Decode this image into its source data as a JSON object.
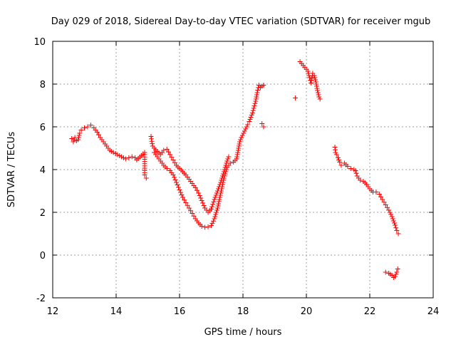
{
  "chart_data": {
    "type": "scatter",
    "title": "Day 029 of 2018, Sidereal Day-to-day VTEC variation (SDTVAR) for receiver mgub",
    "xlabel": "GPS time / hours",
    "ylabel": "SDTVAR / TECUs",
    "xlim": [
      12,
      24
    ],
    "ylim": [
      -2,
      10
    ],
    "xticks": [
      12,
      14,
      16,
      18,
      20,
      22,
      24
    ],
    "yticks": [
      -2,
      0,
      2,
      4,
      6,
      8,
      10
    ],
    "grid": true,
    "marker": "+",
    "series": [
      {
        "name": "SDTVAR",
        "color": "#ff0000",
        "points": [
          [
            12.6,
            5.45
          ],
          [
            12.65,
            5.3
          ],
          [
            12.7,
            5.5
          ],
          [
            12.75,
            5.35
          ],
          [
            12.8,
            5.4
          ],
          [
            12.85,
            5.7
          ],
          [
            12.9,
            5.85
          ],
          [
            13.0,
            5.95
          ],
          [
            13.1,
            6.0
          ],
          [
            13.2,
            6.08
          ],
          [
            13.3,
            5.95
          ],
          [
            13.4,
            5.75
          ],
          [
            13.5,
            5.5
          ],
          [
            13.6,
            5.3
          ],
          [
            13.7,
            5.1
          ],
          [
            13.8,
            4.9
          ],
          [
            13.85,
            4.85
          ],
          [
            14.3,
            4.5
          ],
          [
            14.4,
            4.55
          ],
          [
            14.5,
            4.6
          ],
          [
            14.6,
            4.55
          ],
          [
            14.65,
            4.45
          ],
          [
            14.9,
            4.8
          ],
          [
            14.9,
            3.75
          ],
          [
            14.95,
            3.6
          ],
          [
            15.1,
            5.55
          ],
          [
            15.15,
            5.1
          ],
          [
            15.2,
            5.0
          ],
          [
            15.3,
            4.85
          ],
          [
            15.4,
            4.7
          ],
          [
            15.5,
            4.9
          ],
          [
            15.6,
            4.95
          ],
          [
            15.7,
            4.7
          ],
          [
            15.8,
            4.45
          ],
          [
            15.9,
            4.2
          ],
          [
            16.0,
            4.05
          ],
          [
            16.1,
            3.9
          ],
          [
            16.2,
            3.75
          ],
          [
            16.3,
            3.55
          ],
          [
            16.4,
            3.35
          ],
          [
            16.5,
            3.15
          ],
          [
            16.6,
            2.9
          ],
          [
            16.7,
            2.55
          ],
          [
            16.8,
            2.2
          ],
          [
            16.9,
            2.0
          ],
          [
            17.0,
            2.15
          ],
          [
            17.1,
            2.6
          ],
          [
            17.2,
            3.0
          ],
          [
            17.3,
            3.4
          ],
          [
            17.4,
            3.9
          ],
          [
            17.5,
            4.4
          ],
          [
            17.55,
            4.6
          ],
          [
            15.2,
            4.8
          ],
          [
            15.3,
            4.6
          ],
          [
            15.4,
            4.4
          ],
          [
            15.5,
            4.2
          ],
          [
            15.6,
            4.05
          ],
          [
            15.7,
            3.95
          ],
          [
            15.8,
            3.75
          ],
          [
            15.9,
            3.4
          ],
          [
            16.0,
            3.05
          ],
          [
            16.1,
            2.7
          ],
          [
            16.2,
            2.45
          ],
          [
            16.3,
            2.2
          ],
          [
            16.4,
            1.95
          ],
          [
            16.5,
            1.7
          ],
          [
            16.6,
            1.5
          ],
          [
            16.7,
            1.35
          ],
          [
            16.8,
            1.3
          ],
          [
            16.9,
            1.32
          ],
          [
            17.0,
            1.38
          ],
          [
            17.1,
            1.7
          ],
          [
            17.2,
            2.2
          ],
          [
            17.3,
            2.9
          ],
          [
            17.4,
            3.6
          ],
          [
            17.5,
            4.1
          ],
          [
            17.6,
            4.3
          ],
          [
            17.7,
            4.35
          ],
          [
            17.8,
            4.5
          ],
          [
            17.9,
            5.3
          ],
          [
            17.95,
            5.5
          ],
          [
            18.15,
            6.1
          ],
          [
            18.2,
            6.25
          ],
          [
            18.3,
            6.65
          ],
          [
            18.4,
            7.2
          ],
          [
            18.45,
            7.6
          ],
          [
            18.5,
            7.95
          ],
          [
            18.55,
            7.85
          ],
          [
            18.6,
            7.9
          ],
          [
            18.65,
            7.95
          ],
          [
            18.6,
            6.15
          ],
          [
            18.65,
            6.0
          ],
          [
            19.65,
            7.35
          ],
          [
            19.8,
            9.05
          ],
          [
            20.05,
            8.6
          ],
          [
            20.1,
            8.3
          ],
          [
            20.15,
            8.05
          ],
          [
            20.2,
            8.5
          ],
          [
            20.25,
            8.4
          ],
          [
            20.3,
            8.1
          ],
          [
            20.35,
            7.7
          ],
          [
            20.4,
            7.4
          ],
          [
            20.43,
            7.3
          ],
          [
            20.9,
            5.05
          ],
          [
            20.92,
            4.8
          ],
          [
            20.95,
            4.7
          ],
          [
            21.0,
            4.55
          ],
          [
            21.05,
            4.35
          ],
          [
            21.1,
            4.2
          ],
          [
            21.2,
            4.3
          ],
          [
            21.3,
            4.15
          ],
          [
            21.4,
            4.05
          ],
          [
            21.5,
            4.0
          ],
          [
            21.55,
            3.95
          ],
          [
            21.6,
            3.7
          ],
          [
            21.7,
            3.5
          ],
          [
            21.8,
            3.45
          ],
          [
            21.9,
            3.3
          ],
          [
            22.0,
            3.1
          ],
          [
            22.1,
            2.95
          ],
          [
            22.2,
            2.95
          ],
          [
            22.3,
            2.85
          ],
          [
            22.4,
            2.6
          ],
          [
            22.5,
            2.35
          ],
          [
            22.6,
            2.1
          ],
          [
            22.7,
            1.8
          ],
          [
            22.75,
            1.6
          ],
          [
            22.8,
            1.4
          ],
          [
            22.85,
            1.15
          ],
          [
            22.9,
            1.0
          ],
          [
            22.5,
            -0.8
          ],
          [
            22.6,
            -0.85
          ],
          [
            22.65,
            -0.9
          ],
          [
            22.7,
            -0.95
          ],
          [
            22.75,
            -1.05
          ],
          [
            22.8,
            -1.0
          ],
          [
            22.85,
            -0.8
          ],
          [
            22.88,
            -0.65
          ]
        ]
      }
    ]
  }
}
